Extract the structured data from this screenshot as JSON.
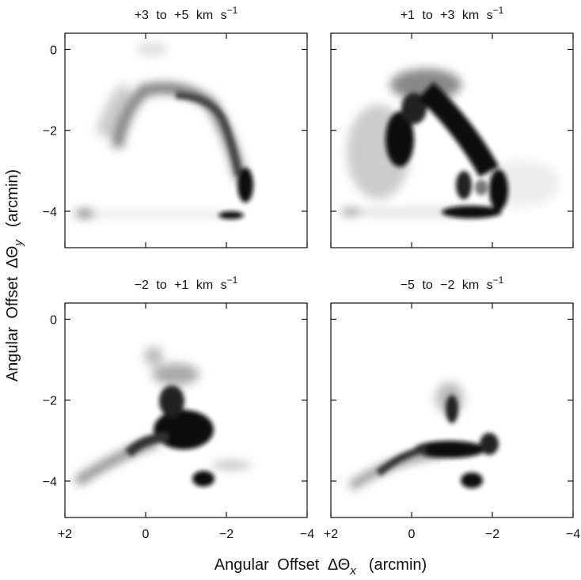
{
  "chart_data": [
    {
      "type": "image",
      "title": {
        "text": "+3 to +5 km s",
        "superscript": "−1"
      }
    },
    {
      "type": "image",
      "title": {
        "text": "+1 to +3 km s",
        "superscript": "−1"
      }
    },
    {
      "type": "image",
      "title": {
        "text": "−2 to +1 km s",
        "superscript": "−1"
      }
    },
    {
      "type": "image",
      "title": {
        "text": "−5 to −2 km s",
        "superscript": "−1"
      }
    }
  ],
  "axes": {
    "x": {
      "label": {
        "text": "Angular Offset ΔΘ",
        "subscript": "x",
        "unit": "(arcmin)"
      },
      "xlim": [
        2,
        -4
      ],
      "xticks": [
        {
          "value": 2,
          "label": "+2"
        },
        0,
        {
          "value": -2,
          "label": "−2"
        },
        {
          "value": -4,
          "label": "−4"
        }
      ]
    },
    "y": {
      "label": {
        "text": "Angular Offset ΔΘ",
        "subscript": "y",
        "unit": "(arcmin)"
      },
      "ylim": [
        -4.9,
        0.4
      ],
      "yticks": [
        0,
        {
          "value": -2,
          "label": "−2"
        },
        {
          "value": -4,
          "label": "−4"
        }
      ]
    }
  }
}
